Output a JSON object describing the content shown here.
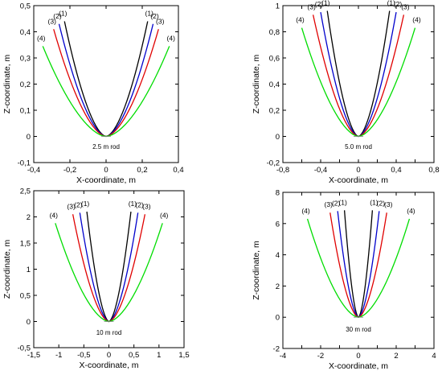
{
  "colors": {
    "series_1": "#000000",
    "series_2": "#0000cc",
    "series_3": "#e00000",
    "series_4": "#00dd00",
    "axis": "#000000",
    "background": "#ffffff"
  },
  "chart_data": [
    {
      "type": "line",
      "annotation": "2.5 m rod",
      "xlabel": "X-coordinate, m",
      "ylabel": "Z-coordinate, m",
      "xlim": [
        -0.4,
        0.4
      ],
      "ylim": [
        -0.1,
        0.5
      ],
      "xticks": [
        -0.4,
        -0.2,
        0,
        0.2,
        0.4
      ],
      "xtick_labels": [
        "-0,4",
        "-0,2",
        "0",
        "0,2",
        "0,4"
      ],
      "yticks": [
        -0.1,
        0,
        0.1,
        0.2,
        0.3,
        0.4,
        0.5
      ],
      "ytick_labels": [
        "-0,1",
        "0",
        "0,1",
        "0,2",
        "0,3",
        "0,4",
        "0,5"
      ],
      "grid": false,
      "series": [
        {
          "name": "(1)",
          "x_tip": 0.23,
          "z_tip": 0.44
        },
        {
          "name": "(2)",
          "x_tip": 0.26,
          "z_tip": 0.43
        },
        {
          "name": "(3)",
          "x_tip": 0.29,
          "z_tip": 0.41
        },
        {
          "name": "(4)",
          "x_tip": 0.35,
          "z_tip": 0.345
        }
      ]
    },
    {
      "type": "line",
      "annotation": "5.0 m rod",
      "xlabel": "X-coordinate, m",
      "ylabel": "Z-coordinate, m",
      "xlim": [
        -0.8,
        0.8
      ],
      "ylim": [
        -0.2,
        1.0
      ],
      "xticks": [
        -0.8,
        -0.6,
        -0.4,
        -0.2,
        0,
        0.2,
        0.4,
        0.6,
        0.8
      ],
      "xtick_labels": [
        "-0,8",
        "",
        "-0,4",
        "",
        "0",
        "",
        "0,4",
        "",
        "0,8"
      ],
      "yticks": [
        -0.2,
        0,
        0.2,
        0.4,
        0.6,
        0.8,
        1.0
      ],
      "ytick_labels": [
        "-0,2",
        "0",
        "0,2",
        "0,4",
        "0,6",
        "0,8",
        "1"
      ],
      "grid": false,
      "series": [
        {
          "name": "(1)",
          "x_tip": 0.33,
          "z_tip": 0.96
        },
        {
          "name": "(2)",
          "x_tip": 0.4,
          "z_tip": 0.95
        },
        {
          "name": "(3)",
          "x_tip": 0.48,
          "z_tip": 0.93
        },
        {
          "name": "(4)",
          "x_tip": 0.6,
          "z_tip": 0.83
        }
      ]
    },
    {
      "type": "line",
      "annotation": "10 m rod",
      "xlabel": "X-coordinate, m",
      "ylabel": "Z-coordinate, m",
      "xlim": [
        -1.5,
        1.5
      ],
      "ylim": [
        -0.5,
        2.5
      ],
      "xticks": [
        -1.5,
        -1,
        -0.5,
        0,
        0.5,
        1,
        1.5
      ],
      "xtick_labels": [
        "-1,5",
        "-1",
        "-0,5",
        "0",
        "0,5",
        "1",
        "1,5"
      ],
      "yticks": [
        -0.5,
        0,
        0.5,
        1,
        1.5,
        2,
        2.5
      ],
      "ytick_labels": [
        "-0,5",
        "0",
        "0,5",
        "1",
        "1,5",
        "2",
        "2,5"
      ],
      "grid": false,
      "series": [
        {
          "name": "(1)",
          "x_tip": 0.44,
          "z_tip": 2.1
        },
        {
          "name": "(2)",
          "x_tip": 0.58,
          "z_tip": 2.08
        },
        {
          "name": "(3)",
          "x_tip": 0.72,
          "z_tip": 2.05
        },
        {
          "name": "(4)",
          "x_tip": 1.07,
          "z_tip": 1.88
        }
      ]
    },
    {
      "type": "line",
      "annotation": "30 m rod",
      "xlabel": "X-coordinate, m",
      "ylabel": "Z-coordinate, m",
      "xlim": [
        -4,
        4
      ],
      "ylim": [
        -2,
        8
      ],
      "xticks": [
        -4,
        -3,
        -2,
        -1,
        0,
        1,
        2,
        3,
        4
      ],
      "xtick_labels": [
        "-4",
        "",
        "-2",
        "",
        "0",
        "",
        "2",
        "",
        "4"
      ],
      "yticks": [
        -2,
        0,
        2,
        4,
        6,
        8
      ],
      "ytick_labels": [
        "-2",
        "0",
        "2",
        "4",
        "6",
        "8"
      ],
      "grid": false,
      "series": [
        {
          "name": "(1)",
          "x_tip": 0.74,
          "z_tip": 6.85
        },
        {
          "name": "(2)",
          "x_tip": 1.1,
          "z_tip": 6.8
        },
        {
          "name": "(3)",
          "x_tip": 1.5,
          "z_tip": 6.7
        },
        {
          "name": "(4)",
          "x_tip": 2.7,
          "z_tip": 6.3
        }
      ]
    }
  ]
}
